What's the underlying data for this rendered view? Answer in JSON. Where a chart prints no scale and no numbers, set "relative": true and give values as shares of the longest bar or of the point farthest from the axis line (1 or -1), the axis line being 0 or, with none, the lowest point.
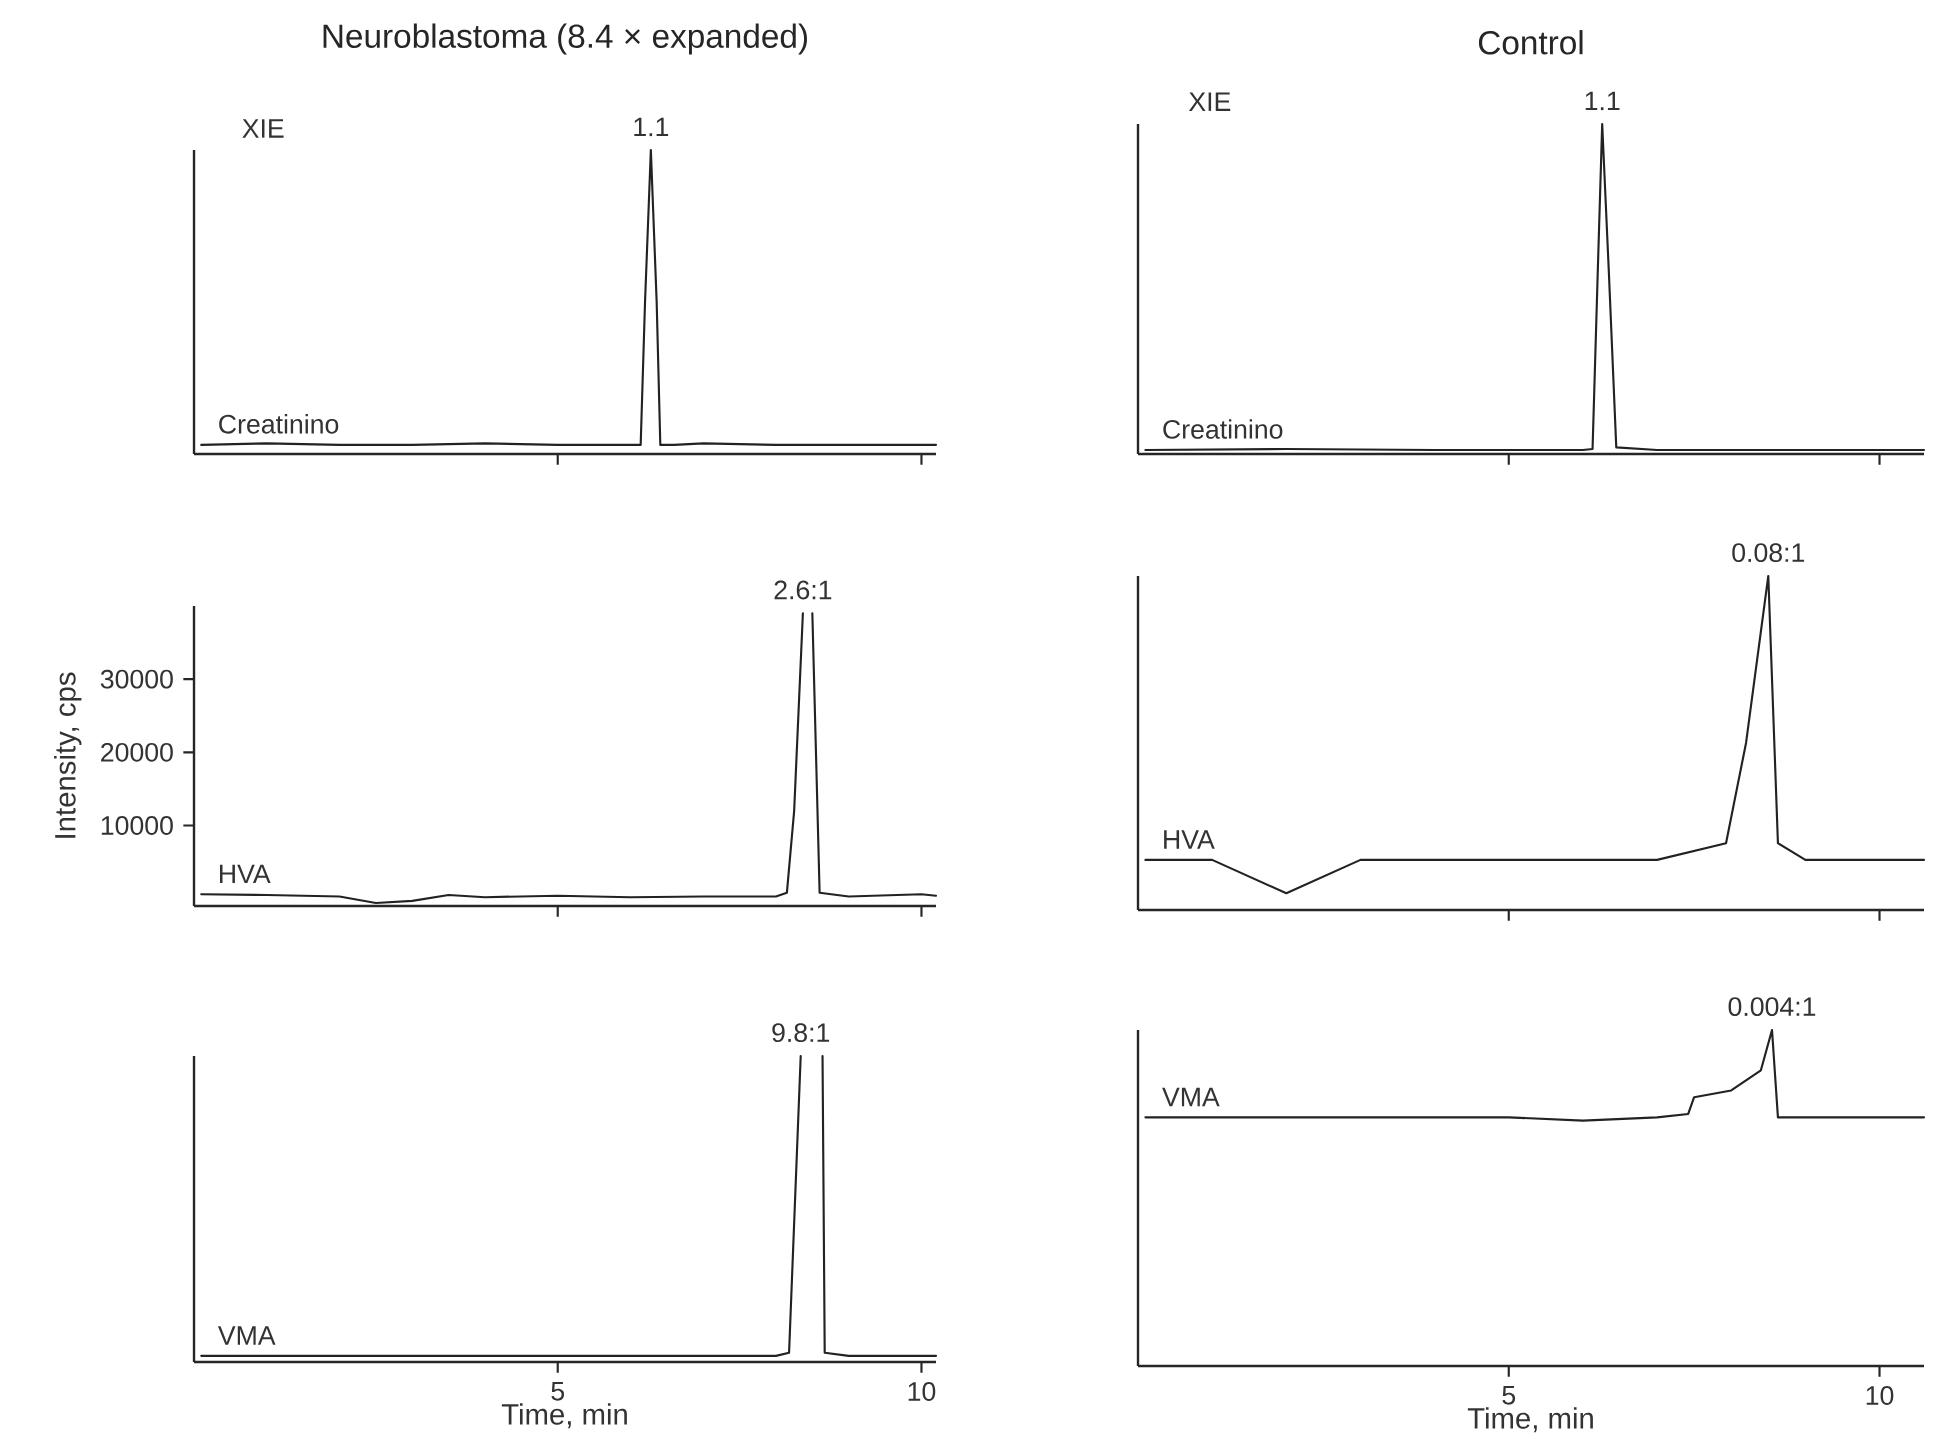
{
  "chart_data": [
    {
      "type": "line",
      "title": "Neuroblastoma (8.4 × expanded)",
      "relative": true,
      "x": [
        0.1,
        1,
        2,
        3,
        4,
        5,
        6,
        6.14,
        6.2,
        6.28,
        6.36,
        6.41,
        6.6,
        7,
        8,
        9,
        10,
        10.2
      ],
      "xlim": [
        0,
        10.2
      ],
      "xticks": [
        5,
        10
      ],
      "tick_labels": false,
      "series": [
        {
          "color": "#222222",
          "values": [
            0.03,
            0.035,
            0.03,
            0.03,
            0.035,
            0.03,
            0.03,
            0.03,
            0.5,
            1,
            0.5,
            0.03,
            0.03,
            0.035,
            0.03,
            0.03,
            0.03,
            0.03
          ]
        }
      ],
      "annotations": [
        "XIE",
        "Creatinino",
        {
          "text": "1.1",
          "x": 6.28,
          "y": 1
        }
      ]
    },
    {
      "type": "line",
      "title": "Control",
      "relative": true,
      "x": [
        0.1,
        2,
        4,
        5,
        6,
        6.13,
        6.2,
        6.26,
        6.35,
        6.45,
        7,
        8,
        9,
        10,
        10.6
      ],
      "xlim": [
        0,
        10.6
      ],
      "xticks": [
        5,
        10
      ],
      "tick_labels": false,
      "series": [
        {
          "color": "#222222",
          "values": [
            0.012,
            0.015,
            0.012,
            0.012,
            0.012,
            0.015,
            0.55,
            1,
            0.55,
            0.02,
            0.012,
            0.012,
            0.012,
            0.012,
            0.012
          ]
        }
      ],
      "annotations": [
        "XIE",
        "Creatinino",
        {
          "text": "1.1",
          "x": 6.26,
          "y": 1
        }
      ]
    },
    {
      "type": "line",
      "ylabel": "Intensity, cps",
      "x": [
        0.1,
        1,
        2,
        2.5,
        3,
        3.5,
        4,
        5,
        6,
        7,
        8,
        8.15,
        8.25,
        8.37,
        8.44,
        8.5,
        8.6,
        9,
        10,
        10.2
      ],
      "xlim": [
        0,
        10.2
      ],
      "xticks": [
        5,
        10
      ],
      "ylim": [
        -1000,
        40000
      ],
      "yticks": [
        10000,
        20000,
        30000
      ],
      "tick_labels": "y",
      "series": [
        {
          "color": "#222222",
          "values": [
            600,
            500,
            300,
            -600,
            -300,
            500,
            200,
            400,
            200,
            300,
            300,
            800,
            12000,
            39000,
            null,
            39000,
            800,
            300,
            600,
            400
          ]
        }
      ],
      "annotations": [
        "HVA",
        {
          "text": "2.6:1",
          "x": 8.37,
          "y": 39000
        }
      ]
    },
    {
      "type": "line",
      "relative": true,
      "x": [
        0.1,
        1,
        2,
        3,
        4,
        5,
        6,
        7,
        7.93,
        8.2,
        8.5,
        8.63,
        9,
        10,
        10.6
      ],
      "xlim": [
        0,
        10.6
      ],
      "xticks": [
        5,
        10
      ],
      "tick_labels": false,
      "series": [
        {
          "color": "#222222",
          "values": [
            0.15,
            0.15,
            0.05,
            0.15,
            0.15,
            0.15,
            0.15,
            0.15,
            0.2,
            0.5,
            1,
            0.2,
            0.15,
            0.15,
            0.15
          ]
        }
      ],
      "annotations": [
        "HVA",
        {
          "text": "0.08:1",
          "x": 8.5,
          "y": 1
        }
      ]
    },
    {
      "type": "line",
      "xlabel": "Time, min",
      "relative": true,
      "x": [
        0.1,
        1,
        2,
        3,
        4,
        5,
        6,
        7,
        8,
        8.18,
        8.34,
        8.5,
        8.64,
        8.67,
        9,
        10,
        10.2
      ],
      "xlim": [
        0,
        10.2
      ],
      "xticks": [
        5,
        10
      ],
      "tick_labels": "x",
      "series": [
        {
          "color": "#222222",
          "values": [
            0.02,
            0.02,
            0.02,
            0.02,
            0.02,
            0.02,
            0.02,
            0.02,
            0.02,
            0.03,
            1,
            null,
            1,
            0.03,
            0.02,
            0.02,
            0.02
          ]
        }
      ],
      "annotations": [
        "VMA",
        {
          "text": "9.8:1",
          "x": 8.34,
          "y": 1
        }
      ]
    },
    {
      "type": "line",
      "xlabel": "Time, min",
      "relative": true,
      "x": [
        0.1,
        1,
        2,
        3,
        4,
        5,
        6,
        7,
        7.42,
        7.5,
        8,
        8.4,
        8.55,
        8.63,
        9,
        10,
        10.6
      ],
      "xlim": [
        0,
        10.6
      ],
      "xticks": [
        5,
        10
      ],
      "tick_labels": "x",
      "series": [
        {
          "color": "#222222",
          "values": [
            0.74,
            0.74,
            0.74,
            0.74,
            0.74,
            0.74,
            0.73,
            0.74,
            0.75,
            0.8,
            0.82,
            0.88,
            1,
            0.74,
            0.74,
            0.74,
            0.74
          ]
        }
      ],
      "annotations": [
        "VMA",
        {
          "text": "0.004:1",
          "x": 8.55,
          "y": 1
        }
      ]
    }
  ]
}
